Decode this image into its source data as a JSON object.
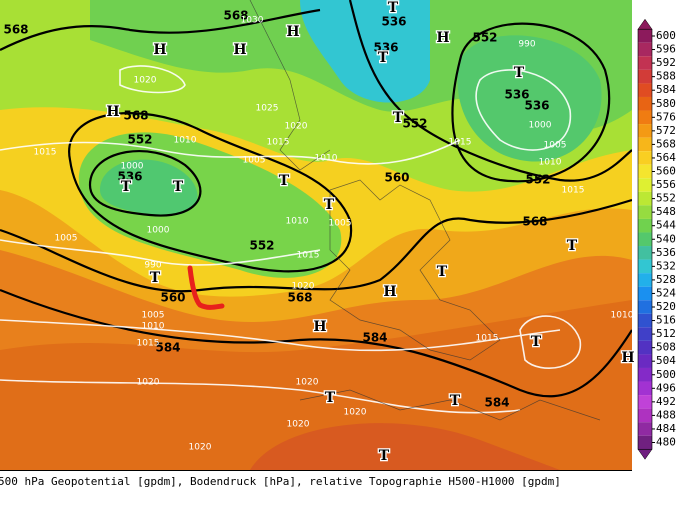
{
  "map": {
    "geopotential_labels": [
      "568",
      "568",
      "536",
      "536",
      "552",
      "568",
      "552",
      "552",
      "536",
      "536",
      "536",
      "560",
      "552",
      "568",
      "552",
      "560",
      "568",
      "584",
      "584",
      "584"
    ],
    "pressure_labels": [
      "1030",
      "990",
      "1020",
      "1025",
      "1010",
      "1020",
      "1015",
      "1015",
      "1000",
      "1005",
      "1010",
      "1015",
      "1000",
      "1005",
      "1010",
      "1015",
      "1010",
      "1005",
      "1005",
      "1000",
      "1015",
      "990",
      "1020",
      "1005",
      "1010",
      "1015",
      "1015",
      "1010",
      "1020",
      "1020",
      "1020",
      "1020",
      "1020"
    ],
    "centers": [
      "H",
      "H",
      "H",
      "H",
      "H",
      "H",
      "H",
      "H",
      "T",
      "T",
      "T",
      "T",
      "T",
      "T",
      "T",
      "T",
      "T",
      "T",
      "T",
      "T",
      "T",
      "T",
      "T"
    ],
    "caption": "500 hPa Geopotential [gpdm], Bodendruck [hPa], relative Topographie H500-H1000 [gpdm]"
  },
  "colorbar": {
    "ticks": [
      600,
      596,
      592,
      588,
      584,
      580,
      576,
      572,
      568,
      564,
      560,
      556,
      552,
      548,
      544,
      540,
      536,
      532,
      528,
      524,
      520,
      516,
      512,
      508,
      504,
      500,
      496,
      492,
      488,
      484,
      480
    ],
    "colors": [
      "#8c1a5c",
      "#a82860",
      "#c23252",
      "#d23c38",
      "#e04c22",
      "#e86414",
      "#f07c12",
      "#f49a14",
      "#f7b61a",
      "#f9cf22",
      "#f5e52e",
      "#def032",
      "#bce834",
      "#96dc40",
      "#70d24e",
      "#54c86c",
      "#42c0a0",
      "#32c6d2",
      "#22b0ea",
      "#1a90f0",
      "#2070e0",
      "#3052d0",
      "#4040c8",
      "#5232c2",
      "#6a2ac2",
      "#842ac8",
      "#a232d2",
      "#c042d8",
      "#ae32c0",
      "#902aa2",
      "#702080"
    ]
  }
}
